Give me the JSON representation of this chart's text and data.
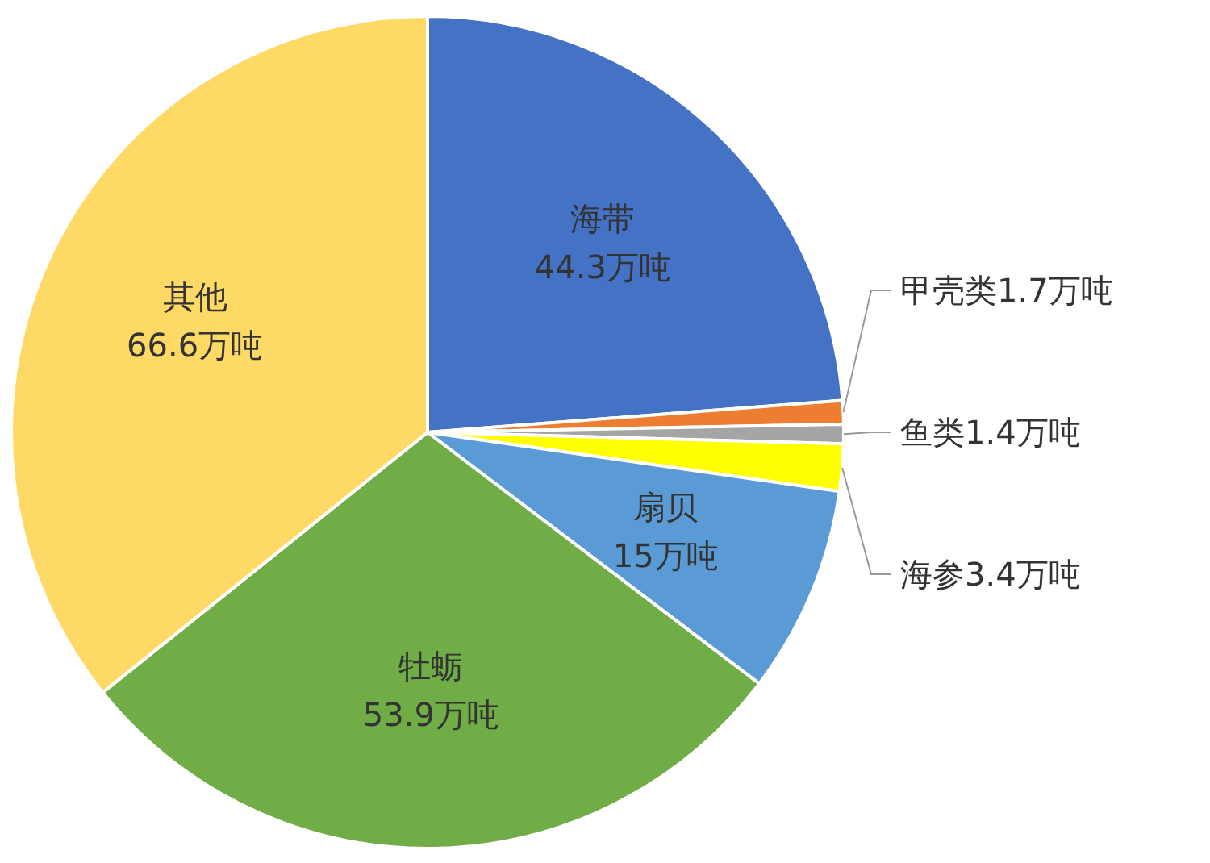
{
  "chart_data": {
    "type": "pie",
    "categories": [
      "海带",
      "甲壳类",
      "鱼类",
      "海参",
      "扇贝",
      "牡蛎",
      "其他"
    ],
    "values": [
      44.3,
      1.7,
      1.4,
      3.4,
      15,
      53.9,
      66.6
    ],
    "value_labels": [
      "44.3万吨",
      "1.7万吨",
      "1.4万吨",
      "3.4万吨",
      "15万吨",
      "53.9万吨",
      "66.6万吨"
    ],
    "colors": [
      "#4472c4",
      "#ed7d31",
      "#a5a5a5",
      "#ffff00",
      "#5b9bd5",
      "#70ad47",
      "#ffd966"
    ]
  }
}
